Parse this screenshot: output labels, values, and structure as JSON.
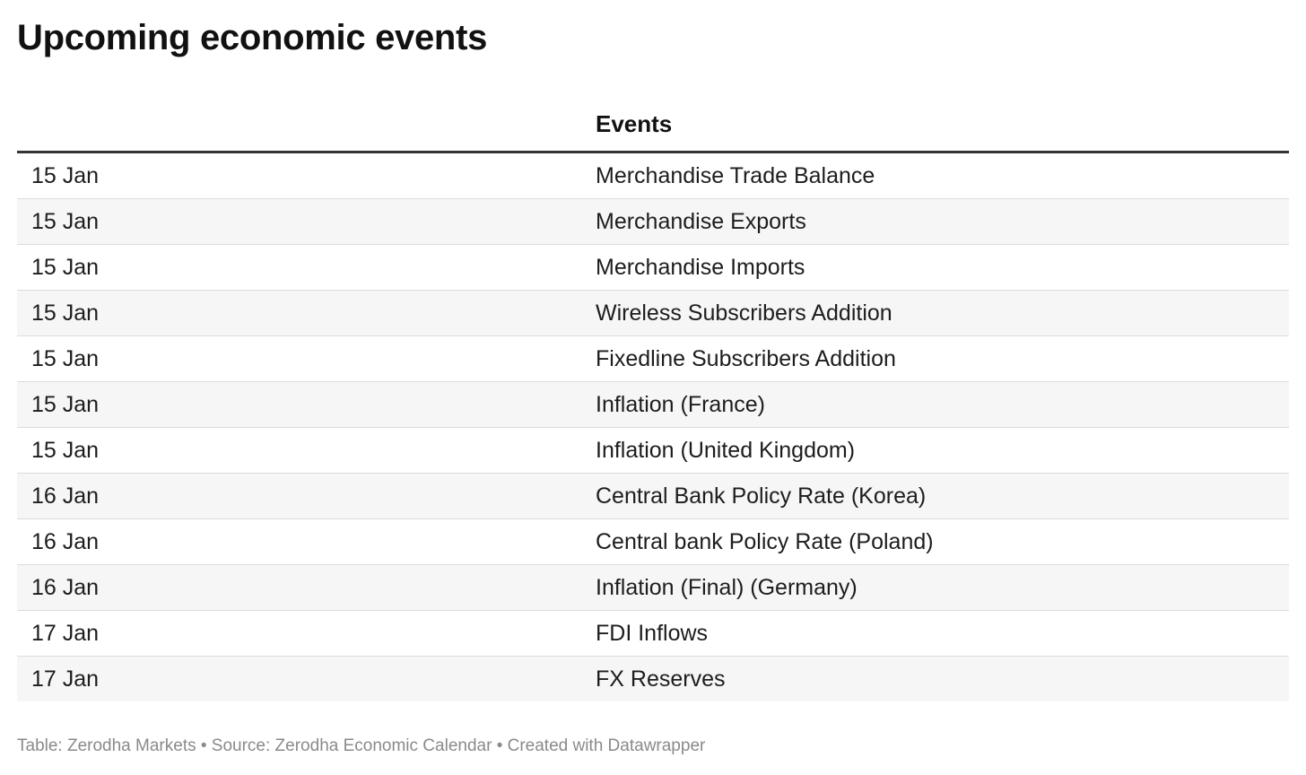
{
  "title": "Upcoming economic events",
  "footer": "Table: Zerodha Markets • Source: Zerodha Economic Calendar • Created with Datawrapper",
  "chart_data": {
    "type": "table",
    "title": "Upcoming economic events",
    "columns": [
      "",
      "Events"
    ],
    "rows": [
      [
        "15 Jan",
        "Merchandise Trade Balance"
      ],
      [
        "15 Jan",
        "Merchandise Exports"
      ],
      [
        "15 Jan",
        "Merchandise Imports"
      ],
      [
        "15 Jan",
        "Wireless Subscribers Addition"
      ],
      [
        "15 Jan",
        "Fixedline Subscribers Addition"
      ],
      [
        "15 Jan",
        "Inflation (France)"
      ],
      [
        "15 Jan",
        "Inflation (United Kingdom)"
      ],
      [
        "16 Jan",
        "Central Bank Policy Rate (Korea)"
      ],
      [
        "16 Jan",
        "Central bank Policy Rate (Poland)"
      ],
      [
        "16 Jan",
        "Inflation (Final) (Germany)"
      ],
      [
        "17 Jan",
        "FDI Inflows"
      ],
      [
        "17 Jan",
        "FX Reserves"
      ]
    ]
  }
}
